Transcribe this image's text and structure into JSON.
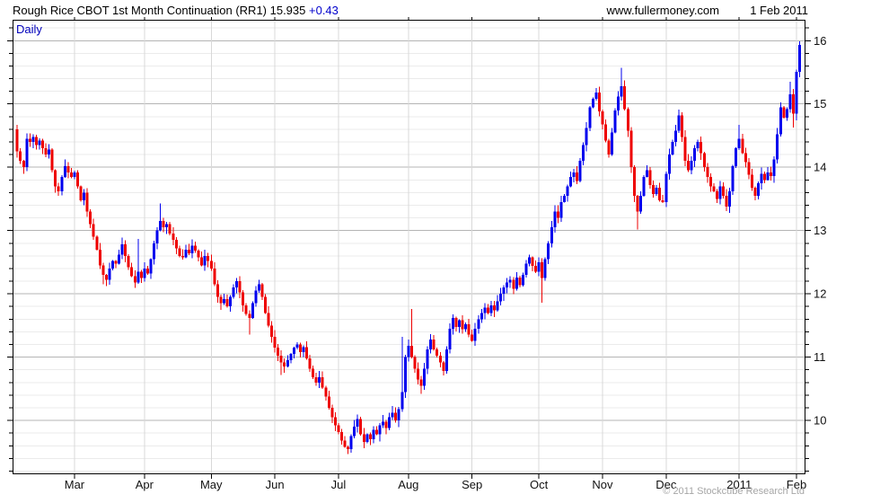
{
  "header": {
    "title": "Rough Rice CBOT 1st Month Continuation (RR1) 15.935",
    "change": "+0.43",
    "website": "www.fullermoney.com",
    "date": "1 Feb 2011"
  },
  "chart": {
    "frequency_label": "Daily",
    "copyright": "© 2011 Stockcube Research Ltd"
  },
  "chart_data": {
    "type": "candlestick",
    "title": "Rough Rice CBOT 1st Month Continuation (RR1)",
    "last_price": 15.935,
    "change": 0.43,
    "as_of_date": "1 Feb 2011",
    "y_axis_side": "right",
    "y_ticks": [
      10,
      11,
      12,
      13,
      14,
      15,
      16
    ],
    "y_range": [
      9.15,
      16.33
    ],
    "y_minor_step": 0.2,
    "x_tick_labels": [
      "Mar",
      "Apr",
      "May",
      "Jun",
      "Jul",
      "Aug",
      "Sep",
      "Oct",
      "Nov",
      "Dec",
      "2011",
      "Feb"
    ],
    "x_tick_indices": [
      18,
      40,
      61,
      81,
      101,
      123,
      143,
      164,
      184,
      204,
      227,
      245
    ],
    "up_color": "#0000ee",
    "down_color": "#ee0000",
    "grid_colors": {
      "major": "#b4b4b4",
      "minor": "#ebebeb",
      "vertical": "#d8d8d8"
    },
    "first_open": 14.6,
    "closes": [
      14.25,
      14.1,
      14.0,
      14.45,
      14.4,
      14.48,
      14.35,
      14.42,
      14.3,
      14.2,
      14.28,
      13.95,
      13.7,
      13.62,
      13.85,
      14.02,
      13.92,
      13.85,
      13.92,
      13.7,
      13.48,
      13.6,
      13.3,
      13.1,
      12.9,
      12.7,
      12.45,
      12.3,
      12.22,
      12.4,
      12.52,
      12.48,
      12.62,
      12.78,
      12.6,
      12.42,
      12.28,
      12.18,
      12.35,
      12.25,
      12.4,
      12.32,
      12.55,
      12.8,
      13.0,
      13.15,
      13.05,
      13.1,
      12.95,
      12.85,
      12.72,
      12.6,
      12.58,
      12.7,
      12.64,
      12.76,
      12.68,
      12.58,
      12.45,
      12.6,
      12.52,
      12.4,
      12.15,
      11.95,
      11.85,
      11.92,
      11.8,
      11.95,
      12.1,
      12.2,
      12.02,
      11.82,
      11.68,
      11.62,
      11.85,
      12.05,
      12.15,
      11.95,
      11.7,
      11.5,
      11.32,
      11.15,
      11.02,
      10.92,
      10.85,
      10.95,
      11.05,
      11.15,
      11.2,
      11.08,
      11.16,
      10.98,
      10.82,
      10.68,
      10.6,
      10.68,
      10.52,
      10.38,
      10.2,
      10.05,
      9.92,
      9.82,
      9.68,
      9.58,
      9.55,
      9.75,
      9.9,
      10.02,
      9.78,
      9.66,
      9.78,
      9.7,
      9.85,
      9.78,
      9.92,
      9.98,
      9.88,
      10.05,
      10.12,
      10.0,
      10.18,
      10.45,
      11.0,
      11.18,
      11.0,
      10.82,
      10.65,
      10.55,
      10.82,
      11.12,
      11.28,
      11.12,
      11.02,
      10.92,
      10.78,
      11.12,
      11.45,
      11.62,
      11.48,
      11.58,
      11.44,
      11.52,
      11.36,
      11.26,
      11.45,
      11.6,
      11.7,
      11.78,
      11.7,
      11.82,
      11.74,
      11.88,
      12.0,
      12.1,
      12.18,
      12.22,
      12.08,
      12.26,
      12.14,
      12.3,
      12.48,
      12.58,
      12.44,
      12.35,
      12.5,
      12.25,
      12.55,
      12.8,
      13.05,
      13.3,
      13.2,
      13.45,
      13.55,
      13.7,
      13.85,
      13.92,
      13.78,
      14.1,
      14.35,
      14.62,
      14.95,
      15.08,
      15.18,
      14.88,
      14.68,
      14.42,
      14.2,
      14.55,
      14.9,
      15.12,
      15.28,
      14.92,
      14.58,
      14.0,
      13.55,
      13.3,
      13.55,
      13.85,
      13.95,
      13.72,
      13.58,
      13.68,
      13.48,
      13.45,
      13.9,
      14.2,
      14.4,
      14.58,
      14.82,
      14.48,
      14.1,
      13.95,
      14.1,
      14.3,
      14.4,
      14.22,
      14.0,
      13.85,
      13.7,
      13.62,
      13.5,
      13.7,
      13.55,
      13.38,
      13.62,
      14.02,
      14.3,
      14.45,
      14.22,
      14.08,
      13.88,
      13.68,
      13.55,
      13.75,
      13.9,
      13.8,
      13.92,
      13.86,
      14.12,
      14.52,
      14.95,
      14.78,
      14.92,
      15.15,
      14.85,
      15.505,
      15.935
    ],
    "spike_overrides": [
      {
        "i": 0,
        "h": 14.67
      },
      {
        "i": 27,
        "l": 12.15
      },
      {
        "i": 38,
        "h": 12.87
      },
      {
        "i": 45,
        "h": 13.43
      },
      {
        "i": 73,
        "l": 11.36
      },
      {
        "i": 83,
        "l": 10.72
      },
      {
        "i": 104,
        "l": 9.47
      },
      {
        "i": 121,
        "h": 11.32
      },
      {
        "i": 124,
        "h": 11.76
      },
      {
        "i": 127,
        "l": 10.42
      },
      {
        "i": 165,
        "l": 11.86
      },
      {
        "i": 182,
        "h": 15.25
      },
      {
        "i": 190,
        "h": 15.57
      },
      {
        "i": 195,
        "l": 13.02
      },
      {
        "i": 208,
        "h": 14.91
      },
      {
        "i": 227,
        "h": 14.67
      },
      {
        "i": 243,
        "h": 15.35
      },
      {
        "i": 244,
        "l": 14.63
      },
      {
        "i": 246,
        "h": 15.99,
        "l": 15.42
      }
    ]
  }
}
